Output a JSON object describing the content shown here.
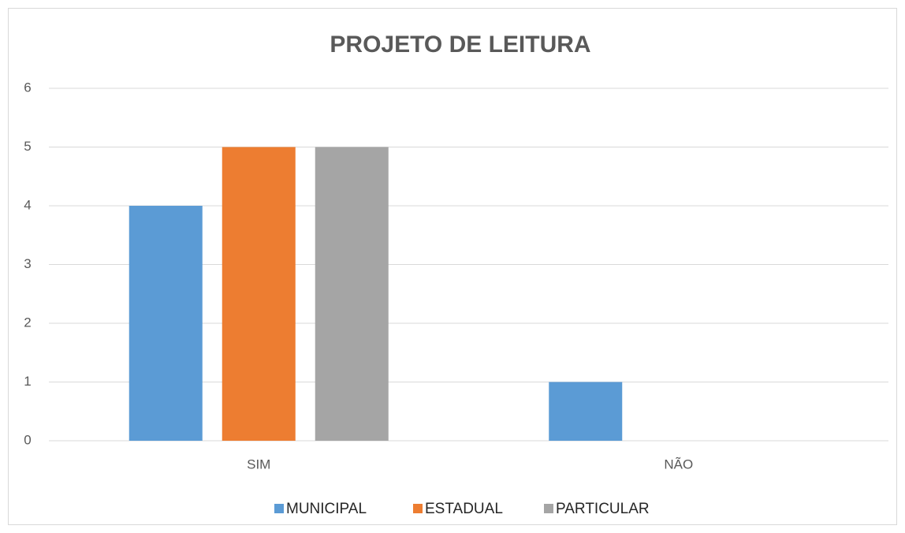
{
  "chart_data": {
    "type": "bar",
    "title": "PROJETO DE LEITURA",
    "categories": [
      "SIM",
      "NÃO"
    ],
    "series": [
      {
        "name": "MUNICIPAL",
        "color": "#5b9bd5",
        "values": [
          4,
          1
        ]
      },
      {
        "name": "ESTADUAL",
        "color": "#ed7d31",
        "values": [
          5,
          0
        ]
      },
      {
        "name": "PARTICULAR",
        "color": "#a5a5a5",
        "values": [
          5,
          0
        ]
      }
    ],
    "ylim": [
      0,
      6
    ],
    "yticks": [
      0,
      1,
      2,
      3,
      4,
      5,
      6
    ],
    "grid": true,
    "legend": "bottom"
  }
}
